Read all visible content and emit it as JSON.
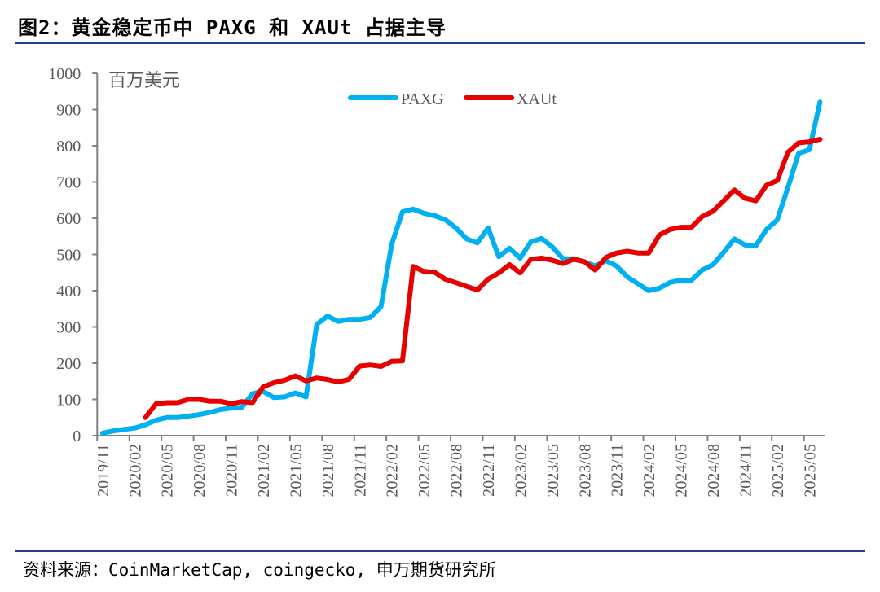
{
  "title": "图2：黄金稳定币中 PAXG 和 XAUt 占据主导",
  "source": "资料来源：CoinMarketCap, coingecko, 申万期货研究所",
  "chart_data": {
    "type": "line",
    "title": "图2：黄金稳定币中 PAXG 和 XAUt 占据主导",
    "ylabel": "百万美元",
    "xlabel": "",
    "ylim": [
      0,
      1000
    ],
    "yticks": [
      0,
      100,
      200,
      300,
      400,
      500,
      600,
      700,
      800,
      900,
      1000
    ],
    "x_start": "2019/11",
    "x_end": "2025/06",
    "xtick_labels": [
      "2019/11",
      "2020/02",
      "2020/05",
      "2020/08",
      "2020/11",
      "2021/02",
      "2021/05",
      "2021/08",
      "2021/11",
      "2022/02",
      "2022/05",
      "2022/08",
      "2022/11",
      "2023/02",
      "2023/05",
      "2023/08",
      "2023/11",
      "2024/02",
      "2024/05",
      "2024/08",
      "2024/11",
      "2025/02",
      "2025/05"
    ],
    "grid": false,
    "legend_position": "top-center",
    "series": [
      {
        "name": "PAXG",
        "color": "#00b0f0",
        "values": [
          7,
          13,
          17,
          21,
          30,
          43,
          50,
          50,
          54,
          58,
          64,
          72,
          76,
          78,
          116,
          122,
          105,
          107,
          118,
          107,
          307,
          330,
          315,
          321,
          321,
          326,
          356,
          528,
          618,
          625,
          614,
          607,
          596,
          573,
          543,
          532,
          573,
          494,
          517,
          490,
          535,
          544,
          521,
          488,
          488,
          480,
          468,
          483,
          468,
          438,
          419,
          400,
          407,
          423,
          429,
          429,
          457,
          472,
          506,
          543,
          526,
          524,
          569,
          595,
          685,
          779,
          789,
          921
        ]
      },
      {
        "name": "XAUt",
        "color": "#e60000",
        "values": [
          null,
          null,
          null,
          null,
          50,
          88,
          91,
          91,
          100,
          100,
          95,
          95,
          88,
          94,
          91,
          135,
          146,
          153,
          165,
          151,
          159,
          155,
          148,
          155,
          192,
          195,
          191,
          205,
          206,
          467,
          453,
          451,
          432,
          422,
          412,
          402,
          432,
          449,
          472,
          449,
          487,
          490,
          484,
          475,
          487,
          480,
          457,
          492,
          504,
          509,
          504,
          504,
          554,
          569,
          575,
          575,
          605,
          619,
          648,
          678,
          655,
          648,
          691,
          704,
          782,
          808,
          811,
          818
        ]
      }
    ]
  }
}
